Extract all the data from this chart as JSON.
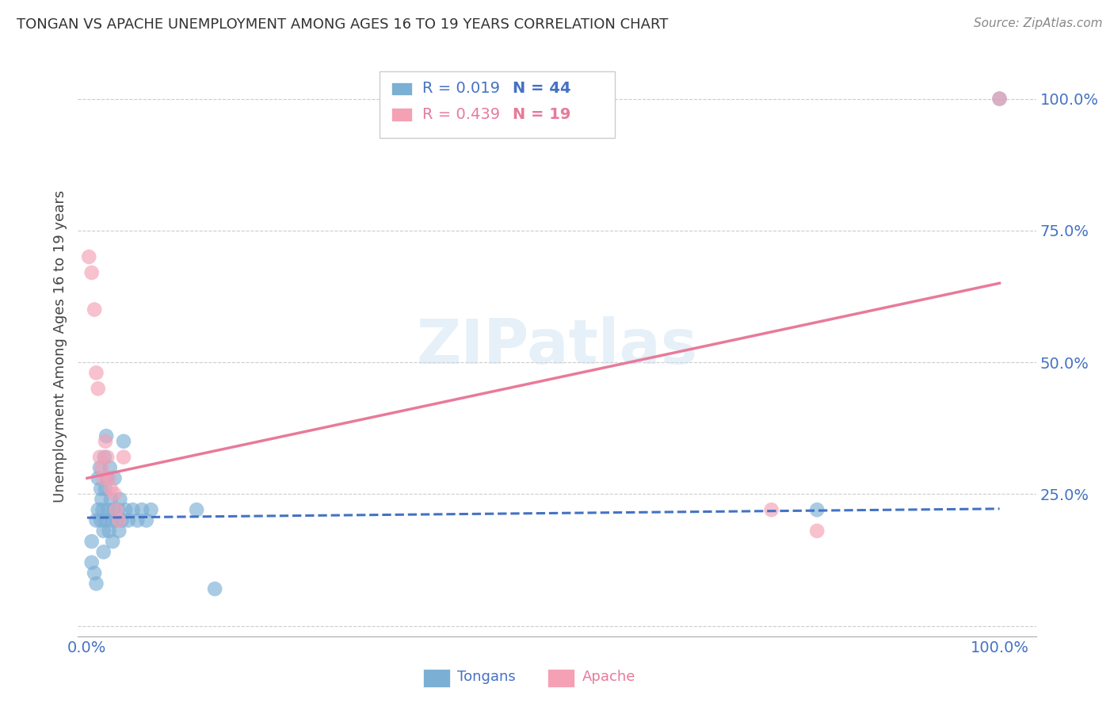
{
  "title": "TONGAN VS APACHE UNEMPLOYMENT AMONG AGES 16 TO 19 YEARS CORRELATION CHART",
  "source": "Source: ZipAtlas.com",
  "ylabel": "Unemployment Among Ages 16 to 19 years",
  "background_color": "#ffffff",
  "watermark": "ZIPatlas",
  "legend_r1": "R = 0.019",
  "legend_n1": "N = 44",
  "legend_r2": "R = 0.439",
  "legend_n2": "N = 19",
  "tongan_color": "#7bafd4",
  "apache_color": "#f4a0b5",
  "tongan_line_color": "#4472c4",
  "apache_line_color": "#e87a9a",
  "grid_color": "#cccccc",
  "axis_label_color": "#4472c4",
  "tongan_scatter_x": [
    0.005,
    0.005,
    0.008,
    0.01,
    0.01,
    0.012,
    0.012,
    0.014,
    0.015,
    0.015,
    0.016,
    0.017,
    0.018,
    0.018,
    0.019,
    0.02,
    0.02,
    0.021,
    0.022,
    0.023,
    0.024,
    0.025,
    0.026,
    0.027,
    0.028,
    0.029,
    0.03,
    0.032,
    0.034,
    0.035,
    0.036,
    0.038,
    0.04,
    0.042,
    0.045,
    0.05,
    0.055,
    0.06,
    0.065,
    0.07,
    0.12,
    0.14,
    0.8,
    1.0
  ],
  "tongan_scatter_y": [
    0.16,
    0.12,
    0.1,
    0.2,
    0.08,
    0.28,
    0.22,
    0.3,
    0.26,
    0.2,
    0.24,
    0.22,
    0.18,
    0.14,
    0.32,
    0.26,
    0.2,
    0.36,
    0.28,
    0.22,
    0.18,
    0.3,
    0.24,
    0.2,
    0.16,
    0.22,
    0.28,
    0.2,
    0.22,
    0.18,
    0.24,
    0.2,
    0.35,
    0.22,
    0.2,
    0.22,
    0.2,
    0.22,
    0.2,
    0.22,
    0.22,
    0.07,
    0.22,
    1.0
  ],
  "apache_scatter_x": [
    0.002,
    0.005,
    0.008,
    0.01,
    0.012,
    0.014,
    0.016,
    0.018,
    0.02,
    0.022,
    0.024,
    0.026,
    0.03,
    0.032,
    0.035,
    0.04,
    0.75,
    0.8,
    1.0
  ],
  "apache_scatter_y": [
    0.7,
    0.67,
    0.6,
    0.48,
    0.45,
    0.32,
    0.3,
    0.28,
    0.35,
    0.32,
    0.28,
    0.26,
    0.25,
    0.22,
    0.2,
    0.32,
    0.22,
    0.18,
    1.0
  ],
  "tongan_line_x": [
    0.0,
    1.0
  ],
  "tongan_line_y": [
    0.205,
    0.222
  ],
  "apache_line_x": [
    0.0,
    1.0
  ],
  "apache_line_y": [
    0.28,
    0.65
  ],
  "xlim": [
    -0.01,
    1.04
  ],
  "ylim": [
    -0.02,
    1.08
  ],
  "yticks": [
    0.0,
    0.25,
    0.5,
    0.75,
    1.0
  ],
  "ytick_labels": [
    "",
    "25.0%",
    "50.0%",
    "75.0%",
    "100.0%"
  ],
  "xticks": [
    0.0,
    0.25,
    0.5,
    0.75,
    1.0
  ],
  "xtick_labels": [
    "0.0%",
    "",
    "",
    "",
    "100.0%"
  ]
}
